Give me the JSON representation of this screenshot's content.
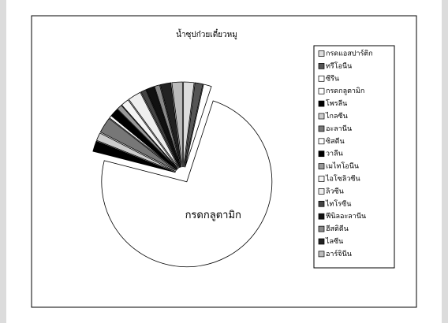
{
  "chart_data": {
    "type": "pie",
    "title": "น้ำซุปก๋วยเตี๋ยวหมู",
    "categories": [
      "กรดแอสปาร์ติก",
      "ทรีโอนีน",
      "ซีรีน",
      "กรดกลูตามิก",
      "โพรลีน",
      "ไกลซีน",
      "อะลานีน",
      "ซิสตีน",
      "วาลีน",
      "เมไทโอนีน",
      "ไอโซลิวซีน",
      "ลิวซีน",
      "ไทโรซีน",
      "ฟีนิลอะลานีน",
      "ฮีสติดีน",
      "ไลซีน",
      "อาร์จินีน"
    ],
    "values": [
      2,
      1.5,
      1.5,
      74,
      2,
      1.5,
      3,
      0.5,
      1.5,
      1,
      1.5,
      2.5,
      1,
      1.5,
      1,
      2,
      2
    ],
    "colors": [
      "#dddddd",
      "#555555",
      "#ffffff",
      "#ffffff",
      "#000000",
      "#cccccc",
      "#777777",
      "#ffffff",
      "#000000",
      "#999999",
      "#f4f4f4",
      "#eeeeee",
      "#444444",
      "#111111",
      "#888888",
      "#222222",
      "#bbbbbb"
    ],
    "legend": "right"
  }
}
